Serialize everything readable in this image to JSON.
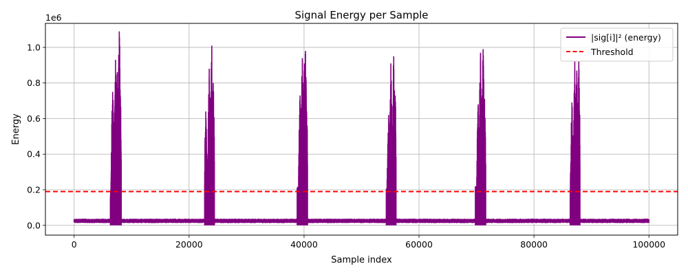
{
  "chart_data": {
    "type": "line",
    "title": "Signal Energy per Sample",
    "xlabel": "Sample index",
    "ylabel": "Energy",
    "y_offset_text": "1e6",
    "xlim": [
      -5000,
      105000
    ],
    "ylim": [
      -0.055,
      1.135
    ],
    "y_scale_factor": 1000000,
    "x_ticks": [
      0,
      20000,
      40000,
      60000,
      80000,
      100000
    ],
    "x_tick_labels": [
      "0",
      "20000",
      "40000",
      "60000",
      "80000",
      "100000"
    ],
    "y_ticks": [
      0.0,
      0.2,
      0.4,
      0.6,
      0.8,
      1.0
    ],
    "y_tick_labels": [
      "0.0",
      "0.2",
      "0.4",
      "0.6",
      "0.8",
      "1.0"
    ],
    "grid": true,
    "legend_position": "top-right",
    "series": [
      {
        "name": "|sig[i]|² (energy)",
        "color": "#800080",
        "style": "solid",
        "x_range": [
          0,
          100000
        ],
        "noise_floor": {
          "min": 0.015,
          "max": 0.035
        },
        "bursts": [
          {
            "x_start": 6300,
            "x_end": 8200,
            "peaks": [
              [
                6700,
                0.75
              ],
              [
                7200,
                0.93
              ],
              [
                7500,
                0.86
              ],
              [
                7850,
                1.09
              ],
              [
                8050,
                0.71
              ]
            ]
          },
          {
            "x_start": 22700,
            "x_end": 24400,
            "peaks": [
              [
                22900,
                0.64
              ],
              [
                23500,
                0.88
              ],
              [
                23950,
                1.01
              ],
              [
                24200,
                0.8
              ]
            ]
          },
          {
            "x_start": 38800,
            "x_end": 40600,
            "peaks": [
              [
                39300,
                0.73
              ],
              [
                39700,
                0.94
              ],
              [
                40050,
                0.91
              ],
              [
                40250,
                0.98
              ],
              [
                40450,
                0.64
              ]
            ]
          },
          {
            "x_start": 54300,
            "x_end": 56000,
            "peaks": [
              [
                54700,
                0.62
              ],
              [
                55100,
                0.91
              ],
              [
                55600,
                0.95
              ],
              [
                55850,
                0.73
              ]
            ]
          },
          {
            "x_start": 69800,
            "x_end": 71600,
            "peaks": [
              [
                70300,
                0.68
              ],
              [
                70700,
                0.97
              ],
              [
                71150,
                0.99
              ],
              [
                71400,
                0.71
              ]
            ]
          },
          {
            "x_start": 86300,
            "x_end": 88000,
            "peaks": [
              [
                86600,
                0.69
              ],
              [
                87100,
                0.92
              ],
              [
                87450,
                0.87
              ],
              [
                87800,
                0.92
              ]
            ]
          }
        ]
      },
      {
        "name": "Threshold",
        "color": "#ff0000",
        "style": "dashed",
        "y": 0.19
      }
    ]
  }
}
